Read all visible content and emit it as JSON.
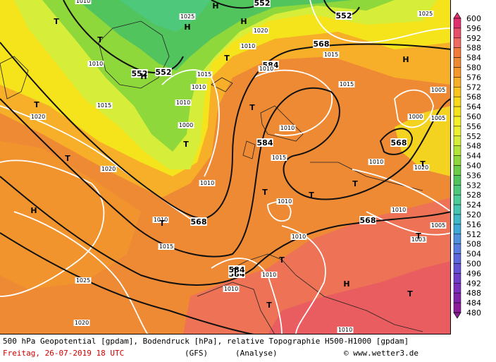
{
  "caption": {
    "line1": "500 hPa Geopotential [gpdam], Bodendruck [hPa], relative Topographie H500-H1000 [gpdam]",
    "date": "Freitag, 26-07-2019  18 UTC",
    "model": "(GFS)",
    "run": "(Analyse)",
    "copyright": "© www.wetter3.de"
  },
  "legend": {
    "values": [
      "600",
      "596",
      "592",
      "588",
      "584",
      "580",
      "576",
      "572",
      "568",
      "564",
      "560",
      "556",
      "552",
      "548",
      "544",
      "540",
      "536",
      "532",
      "528",
      "524",
      "520",
      "516",
      "512",
      "508",
      "504",
      "500",
      "496",
      "492",
      "488",
      "484",
      "480"
    ],
    "colors": [
      "#e0306e",
      "#e65068",
      "#ee6a62",
      "#f27a3a",
      "#ef8a34",
      "#f4982c",
      "#f7ae28",
      "#f9c41e",
      "#f9d81a",
      "#f5e41c",
      "#f5f02a",
      "#ecf030",
      "#d6ee3a",
      "#b2e43a",
      "#8ed83c",
      "#6ccc48",
      "#52c45e",
      "#4ec87a",
      "#4ccc98",
      "#46c6b2",
      "#40b8c8",
      "#40a8d6",
      "#5090dc",
      "#5a7ce0",
      "#5e66dc",
      "#6452d4",
      "#6e3ec8",
      "#7a30ba",
      "#8224aa",
      "#8c1e9a"
    ]
  },
  "map": {
    "background": "#ef8a34",
    "geopotential_labels": [
      "552",
      "552",
      "552",
      "552",
      "568",
      "584",
      "584",
      "568",
      "568",
      "568",
      "584",
      "584"
    ],
    "pressure_labels": [
      "1010",
      "1025",
      "1020",
      "1010",
      "1010",
      "1015",
      "1015",
      "1020",
      "1010",
      "1005",
      "1000",
      "1015",
      "1010",
      "1000",
      "1020",
      "1010",
      "1015",
      "1010",
      "1005",
      "1010",
      "1010",
      "1010",
      "1010",
      "1005",
      "1003",
      "1010",
      "1010",
      "1015",
      "1025",
      "1020",
      "1010",
      "1025",
      "1010",
      "1020",
      "1010",
      "1015"
    ],
    "highs": [
      "H",
      "H",
      "H",
      "H",
      "H",
      "H",
      "H"
    ],
    "lows": [
      "T",
      "T",
      "T",
      "T",
      "T",
      "T",
      "T",
      "T",
      "T",
      "T",
      "T",
      "T",
      "T",
      "T",
      "T",
      "T",
      "T"
    ]
  }
}
